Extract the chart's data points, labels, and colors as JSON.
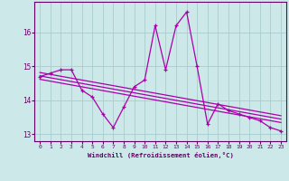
{
  "xlabel": "Windchill (Refroidissement éolien,°C)",
  "hours": [
    0,
    1,
    2,
    3,
    4,
    5,
    6,
    7,
    8,
    9,
    10,
    11,
    12,
    13,
    14,
    15,
    16,
    17,
    18,
    19,
    20,
    21,
    22,
    23
  ],
  "windchill": [
    14.7,
    14.8,
    14.9,
    14.9,
    14.3,
    14.1,
    13.6,
    13.2,
    13.8,
    14.4,
    14.6,
    16.2,
    14.9,
    16.2,
    16.6,
    15.0,
    13.3,
    13.9,
    13.7,
    13.6,
    13.5,
    13.4,
    13.2,
    13.1
  ],
  "trend1_x": [
    0,
    23
  ],
  "trend1_y": [
    14.82,
    13.55
  ],
  "trend2_x": [
    0,
    23
  ],
  "trend2_y": [
    14.72,
    13.45
  ],
  "trend3_x": [
    0,
    23
  ],
  "trend3_y": [
    14.62,
    13.35
  ],
  "bg_color": "#cce8e8",
  "line_color": "#aa00aa",
  "grid_color": "#aacccc",
  "ylim": [
    12.8,
    16.9
  ],
  "yticks": [
    13,
    14,
    15,
    16
  ],
  "xticks": [
    0,
    1,
    2,
    3,
    4,
    5,
    6,
    7,
    8,
    9,
    10,
    11,
    12,
    13,
    14,
    15,
    16,
    17,
    18,
    19,
    20,
    21,
    22,
    23
  ]
}
